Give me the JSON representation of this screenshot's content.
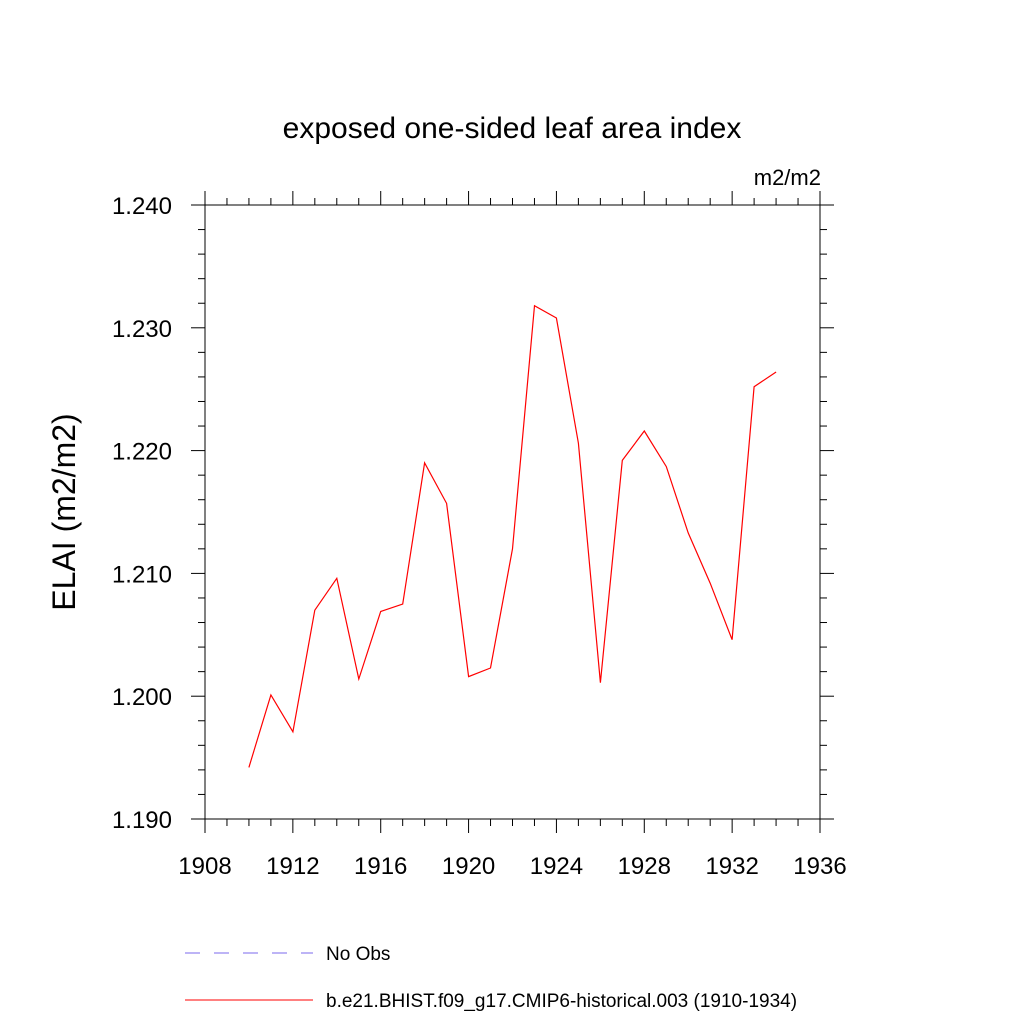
{
  "chart_data": {
    "type": "line",
    "title": "exposed one-sided leaf area index",
    "units_label": "m2/m2",
    "ylabel": "ELAI  (m2/m2)",
    "xlabel": "",
    "xlim": [
      1908,
      1936
    ],
    "ylim": [
      1.19,
      1.24
    ],
    "x_ticks": [
      1908,
      1912,
      1916,
      1920,
      1924,
      1928,
      1932,
      1936
    ],
    "x_tick_labels": [
      "1908",
      "1912",
      "1916",
      "1920",
      "1924",
      "1928",
      "1932",
      "1936"
    ],
    "y_ticks": [
      1.19,
      1.2,
      1.21,
      1.22,
      1.23,
      1.24
    ],
    "y_tick_labels": [
      "1.190",
      "1.200",
      "1.210",
      "1.220",
      "1.230",
      "1.240"
    ],
    "grid": false,
    "legend_position": "bottom",
    "series": [
      {
        "name": "b.e21.BHIST.f09_g17.CMIP6-historical.003 (1910-1934)",
        "color": "#ff0000",
        "style": "solid",
        "x": [
          1910,
          1911,
          1912,
          1913,
          1914,
          1915,
          1916,
          1917,
          1918,
          1919,
          1920,
          1921,
          1922,
          1923,
          1924,
          1925,
          1926,
          1927,
          1928,
          1929,
          1930,
          1931,
          1932,
          1933,
          1934
        ],
        "y": [
          1.1942,
          1.2001,
          1.1971,
          1.207,
          1.2096,
          1.2014,
          1.2069,
          1.2075,
          1.219,
          1.2157,
          1.2016,
          1.2023,
          1.212,
          1.2318,
          1.2308,
          1.2206,
          1.2011,
          1.2192,
          1.2216,
          1.2187,
          1.2133,
          1.2092,
          1.2046,
          1.2252,
          1.2264
        ]
      }
    ],
    "legend": [
      {
        "label": "No Obs",
        "color": "#7b68ee",
        "style": "dashed"
      },
      {
        "label": "b.e21.BHIST.f09_g17.CMIP6-historical.003 (1910-1934)",
        "color": "#ff0000",
        "style": "solid"
      }
    ]
  }
}
